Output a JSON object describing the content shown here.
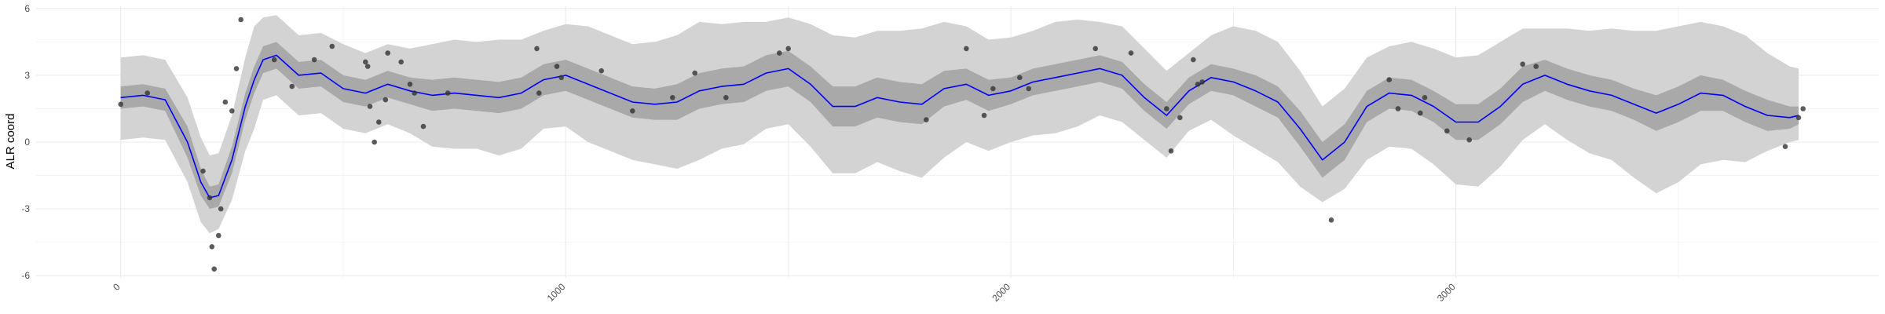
{
  "chart_data": {
    "type": "line",
    "xlabel": "",
    "ylabel": "ALR coord",
    "xlim": [
      -190,
      3950
    ],
    "ylim": [
      -6.1,
      6.1
    ],
    "x_ticks": [
      0,
      1000,
      2000,
      3000
    ],
    "x_tick_labels": [
      "0",
      "1000",
      "2000",
      "3000"
    ],
    "y_ticks": [
      -6,
      -3,
      0,
      3,
      6
    ],
    "y_tick_labels": [
      "-6",
      "-3",
      "0",
      "3",
      "6"
    ],
    "grid": true,
    "colors": {
      "mean_line": "#0000ff",
      "outer_band": "#d3d3d3",
      "inner_band": "#a9a9a9",
      "points": "#333333",
      "grid": "#ebebeb"
    },
    "series": [
      {
        "role": "mean",
        "x": [
          0,
          50,
          100,
          150,
          180,
          200,
          220,
          250,
          280,
          300,
          320,
          350,
          400,
          450,
          500,
          550,
          600,
          650,
          700,
          750,
          800,
          850,
          900,
          950,
          1000,
          1050,
          1100,
          1150,
          1200,
          1250,
          1300,
          1350,
          1400,
          1450,
          1500,
          1550,
          1600,
          1650,
          1700,
          1750,
          1800,
          1850,
          1900,
          1950,
          2000,
          2050,
          2100,
          2150,
          2200,
          2250,
          2300,
          2350,
          2400,
          2450,
          2500,
          2550,
          2600,
          2650,
          2700,
          2750,
          2800,
          2850,
          2900,
          2950,
          3000,
          3050,
          3100,
          3150,
          3200,
          3250,
          3300,
          3350,
          3400,
          3450,
          3500,
          3550,
          3600,
          3650,
          3700,
          3750,
          3770
        ],
        "y": [
          2.0,
          2.1,
          1.9,
          0.0,
          -1.8,
          -2.5,
          -2.4,
          -0.8,
          1.6,
          2.8,
          3.7,
          3.9,
          3.0,
          3.1,
          2.4,
          2.2,
          2.6,
          2.3,
          2.1,
          2.2,
          2.1,
          2.0,
          2.2,
          2.8,
          3.0,
          2.6,
          2.2,
          1.8,
          1.7,
          1.8,
          2.3,
          2.5,
          2.6,
          3.1,
          3.3,
          2.6,
          1.6,
          1.6,
          2.0,
          1.8,
          1.7,
          2.4,
          2.6,
          2.1,
          2.3,
          2.7,
          2.9,
          3.1,
          3.3,
          3.0,
          2.0,
          1.2,
          2.3,
          2.9,
          2.7,
          2.3,
          1.8,
          0.6,
          -0.8,
          0.0,
          1.6,
          2.2,
          2.1,
          1.6,
          0.9,
          0.9,
          1.6,
          2.6,
          3.0,
          2.6,
          2.3,
          2.1,
          1.7,
          1.3,
          1.7,
          2.2,
          2.1,
          1.6,
          1.2,
          1.1,
          1.2
        ]
      },
      {
        "role": "inner_band_upper",
        "x": [
          0,
          50,
          100,
          150,
          180,
          200,
          220,
          250,
          280,
          300,
          320,
          350,
          400,
          450,
          500,
          550,
          600,
          650,
          700,
          750,
          800,
          850,
          900,
          950,
          1000,
          1050,
          1100,
          1150,
          1200,
          1250,
          1300,
          1350,
          1400,
          1450,
          1500,
          1550,
          1600,
          1650,
          1700,
          1750,
          1800,
          1850,
          1900,
          1950,
          2000,
          2050,
          2100,
          2150,
          2200,
          2250,
          2300,
          2350,
          2400,
          2450,
          2500,
          2550,
          2600,
          2650,
          2700,
          2750,
          2800,
          2850,
          2900,
          2950,
          3000,
          3050,
          3100,
          3150,
          3200,
          3250,
          3300,
          3350,
          3400,
          3450,
          3500,
          3550,
          3600,
          3650,
          3700,
          3750,
          3770
        ],
        "y": [
          2.5,
          2.6,
          2.4,
          0.7,
          -1.2,
          -2.0,
          -1.9,
          -0.2,
          2.2,
          3.4,
          4.3,
          4.5,
          3.6,
          3.7,
          3.0,
          2.8,
          3.2,
          2.9,
          2.8,
          2.9,
          2.8,
          2.7,
          2.9,
          3.5,
          3.7,
          3.3,
          2.9,
          2.5,
          2.4,
          2.6,
          3.1,
          3.3,
          3.4,
          3.9,
          4.1,
          3.4,
          2.5,
          2.5,
          2.9,
          2.7,
          2.6,
          3.2,
          3.3,
          2.8,
          2.9,
          3.3,
          3.5,
          3.7,
          3.9,
          3.6,
          2.6,
          1.8,
          2.9,
          3.5,
          3.3,
          3.0,
          2.5,
          1.4,
          0.0,
          0.8,
          2.3,
          2.9,
          2.8,
          2.3,
          1.7,
          1.7,
          2.4,
          3.4,
          3.7,
          3.3,
          3.0,
          2.8,
          2.4,
          2.1,
          2.5,
          3.0,
          2.8,
          2.3,
          1.9,
          1.6,
          1.6
        ]
      },
      {
        "role": "inner_band_lower",
        "x": [
          0,
          50,
          100,
          150,
          180,
          200,
          220,
          250,
          280,
          300,
          320,
          350,
          400,
          450,
          500,
          550,
          600,
          650,
          700,
          750,
          800,
          850,
          900,
          950,
          1000,
          1050,
          1100,
          1150,
          1200,
          1250,
          1300,
          1350,
          1400,
          1450,
          1500,
          1550,
          1600,
          1650,
          1700,
          1750,
          1800,
          1850,
          1900,
          1950,
          2000,
          2050,
          2100,
          2150,
          2200,
          2250,
          2300,
          2350,
          2400,
          2450,
          2500,
          2550,
          2600,
          2650,
          2700,
          2750,
          2800,
          2850,
          2900,
          2950,
          3000,
          3050,
          3100,
          3150,
          3200,
          3250,
          3300,
          3350,
          3400,
          3450,
          3500,
          3550,
          3600,
          3650,
          3700,
          3750,
          3770
        ],
        "y": [
          1.5,
          1.6,
          1.4,
          -0.7,
          -2.4,
          -3.0,
          -2.9,
          -1.4,
          1.0,
          2.2,
          3.1,
          3.3,
          2.4,
          2.5,
          1.8,
          1.6,
          2.0,
          1.7,
          1.4,
          1.5,
          1.4,
          1.3,
          1.5,
          2.1,
          2.3,
          1.9,
          1.5,
          1.1,
          1.0,
          1.0,
          1.5,
          1.7,
          1.8,
          2.3,
          2.5,
          1.8,
          0.7,
          0.7,
          1.1,
          0.9,
          0.8,
          1.6,
          1.9,
          1.4,
          1.7,
          2.1,
          2.3,
          2.5,
          2.7,
          2.4,
          1.4,
          0.6,
          1.7,
          2.3,
          2.1,
          1.6,
          1.1,
          -0.2,
          -1.6,
          -0.8,
          0.9,
          1.5,
          1.4,
          0.9,
          0.1,
          0.1,
          0.8,
          1.8,
          2.3,
          1.9,
          1.6,
          1.4,
          1.0,
          0.5,
          0.9,
          1.4,
          1.4,
          0.9,
          0.5,
          0.6,
          0.8
        ]
      },
      {
        "role": "outer_band_upper",
        "x": [
          0,
          50,
          100,
          150,
          180,
          200,
          220,
          250,
          280,
          300,
          320,
          350,
          400,
          450,
          500,
          550,
          600,
          650,
          700,
          750,
          800,
          850,
          900,
          950,
          1000,
          1050,
          1100,
          1150,
          1200,
          1250,
          1300,
          1350,
          1400,
          1450,
          1500,
          1550,
          1600,
          1650,
          1700,
          1750,
          1800,
          1850,
          1900,
          1950,
          2000,
          2050,
          2100,
          2150,
          2200,
          2250,
          2300,
          2350,
          2400,
          2450,
          2500,
          2550,
          2600,
          2650,
          2700,
          2750,
          2800,
          2850,
          2900,
          2950,
          3000,
          3050,
          3100,
          3150,
          3200,
          3250,
          3300,
          3350,
          3400,
          3450,
          3500,
          3550,
          3600,
          3650,
          3700,
          3750,
          3770
        ],
        "y": [
          3.8,
          3.9,
          3.7,
          2.0,
          0.2,
          -0.6,
          -0.5,
          1.2,
          3.8,
          5.2,
          5.6,
          5.7,
          4.8,
          4.9,
          4.4,
          4.0,
          4.4,
          4.2,
          4.4,
          4.6,
          4.5,
          4.6,
          4.6,
          5.0,
          5.3,
          5.2,
          4.8,
          4.4,
          4.5,
          4.8,
          5.4,
          5.3,
          5.4,
          5.4,
          5.6,
          5.3,
          4.8,
          4.7,
          5.0,
          5.0,
          5.1,
          5.4,
          5.2,
          4.6,
          4.7,
          5.0,
          5.4,
          5.5,
          5.4,
          5.2,
          4.2,
          3.2,
          4.0,
          4.8,
          5.2,
          5.0,
          4.5,
          3.2,
          1.6,
          2.4,
          3.8,
          4.3,
          4.5,
          4.2,
          3.8,
          3.9,
          4.5,
          5.1,
          5.1,
          5.1,
          5.0,
          5.1,
          5.0,
          5.0,
          5.2,
          5.4,
          5.2,
          4.8,
          4.0,
          3.4,
          3.3
        ]
      },
      {
        "role": "outer_band_lower",
        "x": [
          0,
          50,
          100,
          150,
          180,
          200,
          220,
          250,
          280,
          300,
          320,
          350,
          400,
          450,
          500,
          550,
          600,
          650,
          700,
          750,
          800,
          850,
          900,
          950,
          1000,
          1050,
          1100,
          1150,
          1200,
          1250,
          1300,
          1350,
          1400,
          1450,
          1500,
          1550,
          1600,
          1650,
          1700,
          1750,
          1800,
          1850,
          1900,
          1950,
          2000,
          2050,
          2100,
          2150,
          2200,
          2250,
          2300,
          2350,
          2400,
          2450,
          2500,
          2550,
          2600,
          2650,
          2700,
          2750,
          2800,
          2850,
          2900,
          2950,
          3000,
          3050,
          3100,
          3150,
          3200,
          3250,
          3300,
          3350,
          3400,
          3450,
          3500,
          3550,
          3600,
          3650,
          3700,
          3750,
          3770
        ],
        "y": [
          0.1,
          0.2,
          0.1,
          -1.8,
          -3.6,
          -4.1,
          -3.9,
          -2.6,
          -0.4,
          0.6,
          1.9,
          2.1,
          1.2,
          1.3,
          0.6,
          0.4,
          0.8,
          0.4,
          -0.2,
          -0.3,
          -0.3,
          -0.6,
          -0.3,
          0.6,
          0.7,
          0.0,
          -0.4,
          -0.8,
          -1.0,
          -1.2,
          -0.8,
          -0.3,
          -0.1,
          0.6,
          0.8,
          -0.2,
          -1.4,
          -1.4,
          -0.9,
          -1.3,
          -1.6,
          -0.7,
          0.0,
          -0.4,
          0.0,
          0.3,
          0.4,
          0.7,
          1.2,
          0.9,
          0.1,
          -0.7,
          0.5,
          1.0,
          0.3,
          -0.3,
          -0.9,
          -2.0,
          -2.7,
          -2.1,
          -0.8,
          -0.2,
          -0.3,
          -1.0,
          -1.9,
          -2.0,
          -1.1,
          0.1,
          0.8,
          0.1,
          -0.5,
          -0.8,
          -1.6,
          -2.3,
          -1.8,
          -1.0,
          -0.8,
          -0.9,
          -0.4,
          0.0,
          0.1
        ]
      },
      {
        "role": "points",
        "x": [
          0,
          60,
          185,
          200,
          205,
          210,
          220,
          225,
          235,
          250,
          260,
          270,
          345,
          385,
          435,
          475,
          550,
          555,
          560,
          570,
          580,
          595,
          600,
          630,
          650,
          660,
          680,
          735,
          935,
          940,
          980,
          990,
          1080,
          1150,
          1240,
          1290,
          1360,
          1480,
          1500,
          1810,
          1900,
          1940,
          1960,
          2020,
          2040,
          2190,
          2270,
          2350,
          2360,
          2380,
          2410,
          2420,
          2430,
          2720,
          2850,
          2870,
          2920,
          2930,
          2980,
          3030,
          3150,
          3180,
          3740,
          3770,
          3780
        ],
        "y": [
          1.7,
          2.2,
          -1.3,
          -2.5,
          -4.7,
          -5.7,
          -4.2,
          -3.0,
          1.8,
          1.4,
          3.3,
          5.5,
          3.7,
          2.5,
          3.7,
          4.3,
          3.6,
          3.4,
          1.6,
          0.0,
          0.9,
          1.9,
          4.0,
          3.6,
          2.6,
          2.2,
          0.7,
          2.2,
          4.2,
          2.2,
          3.4,
          2.9,
          3.2,
          1.4,
          2.0,
          3.1,
          2.0,
          4.0,
          4.2,
          1.0,
          4.2,
          1.2,
          2.4,
          2.9,
          2.4,
          4.2,
          4.0,
          1.5,
          -0.4,
          1.1,
          3.7,
          2.6,
          2.7,
          -3.5,
          2.8,
          1.5,
          1.3,
          2.0,
          0.5,
          0.1,
          3.5,
          3.4,
          -0.2,
          1.1,
          1.5
        ]
      }
    ]
  }
}
